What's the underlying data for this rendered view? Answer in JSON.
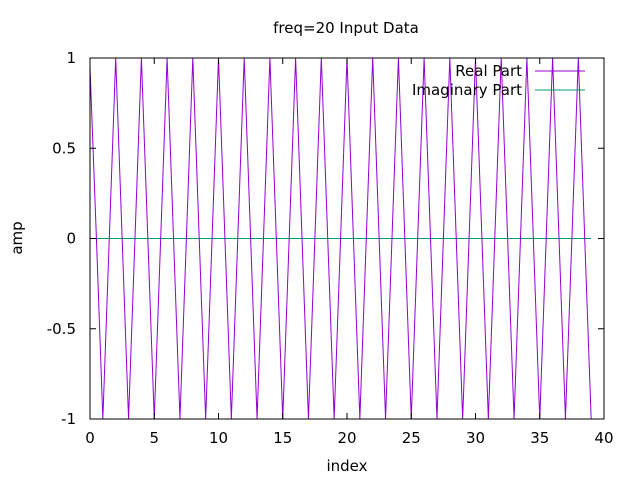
{
  "chart_data": {
    "type": "line",
    "title": "freq=20 Input Data",
    "xlabel": "index",
    "ylabel": "amp",
    "xlim": [
      0,
      40
    ],
    "ylim": [
      -1,
      1
    ],
    "x_ticks": [
      0,
      5,
      10,
      15,
      20,
      25,
      30,
      35,
      40
    ],
    "x_tick_labels": [
      "0",
      "5",
      "10",
      "15",
      "20",
      "25",
      "30",
      "35",
      "40"
    ],
    "y_ticks": [
      1,
      0.5,
      0,
      -0.5,
      -1
    ],
    "y_tick_labels": [
      "1",
      "0.5",
      "0",
      "-0.5",
      "-1"
    ],
    "grid": false,
    "legend_position": "top-right",
    "x": [
      0,
      0.5,
      1,
      1.5,
      2,
      2.5,
      3,
      3.5,
      4,
      4.5,
      5,
      5.5,
      6,
      6.5,
      7,
      7.5,
      8,
      8.5,
      9,
      9.5,
      10,
      10.5,
      11,
      11.5,
      12,
      12.5,
      13,
      13.5,
      14,
      14.5,
      15,
      15.5,
      16,
      16.5,
      17,
      17.5,
      18,
      18.5,
      19,
      19.5,
      20,
      20.5,
      21,
      21.5,
      22,
      22.5,
      23,
      23.5,
      24,
      24.5,
      25,
      25.5,
      26,
      26.5,
      27,
      27.5,
      28,
      28.5,
      29,
      29.5,
      30,
      30.5,
      31,
      31.5,
      32,
      32.5,
      33,
      33.5,
      34,
      34.5,
      35,
      35.5,
      36,
      36.5,
      37,
      37.5,
      38,
      38.5,
      39
    ],
    "series": [
      {
        "name": "Real Part",
        "color": "#9400d3",
        "values": [
          0.95,
          0,
          -1,
          0,
          1,
          0,
          -1,
          0,
          1,
          0,
          -1,
          0,
          1,
          0,
          -1,
          0,
          1,
          0,
          -1,
          0,
          1,
          0,
          -1,
          0,
          1,
          0,
          -1,
          0,
          1,
          0,
          -1,
          0,
          1,
          0,
          -1,
          0,
          1,
          0,
          -1,
          0,
          1,
          0,
          -1,
          0,
          1,
          0,
          -1,
          0,
          1,
          0,
          -1,
          0,
          1,
          0,
          -1,
          0,
          1,
          0,
          -1,
          0,
          1,
          0,
          -1,
          0,
          1,
          0,
          -1,
          0,
          1,
          0,
          -1,
          0,
          1,
          0,
          -1,
          0,
          1,
          0,
          -1
        ]
      },
      {
        "name": "Imaginary Part",
        "color": "#009e73",
        "values": [
          0,
          0,
          0,
          0,
          0,
          0,
          0,
          0,
          0,
          0,
          0,
          0,
          0,
          0,
          0,
          0,
          0,
          0,
          0,
          0,
          0,
          0,
          0,
          0,
          0,
          0,
          0,
          0,
          0,
          0,
          0,
          0,
          0,
          0,
          0,
          0,
          0,
          0,
          0,
          0,
          0,
          0,
          0,
          0,
          0,
          0,
          0,
          0,
          0,
          0,
          0,
          0,
          0,
          0,
          0,
          0,
          0,
          0,
          0,
          0,
          0,
          0,
          0,
          0,
          0,
          0,
          0,
          0,
          0,
          0,
          0,
          0,
          0,
          0,
          0,
          0,
          0,
          0,
          0
        ]
      }
    ]
  }
}
